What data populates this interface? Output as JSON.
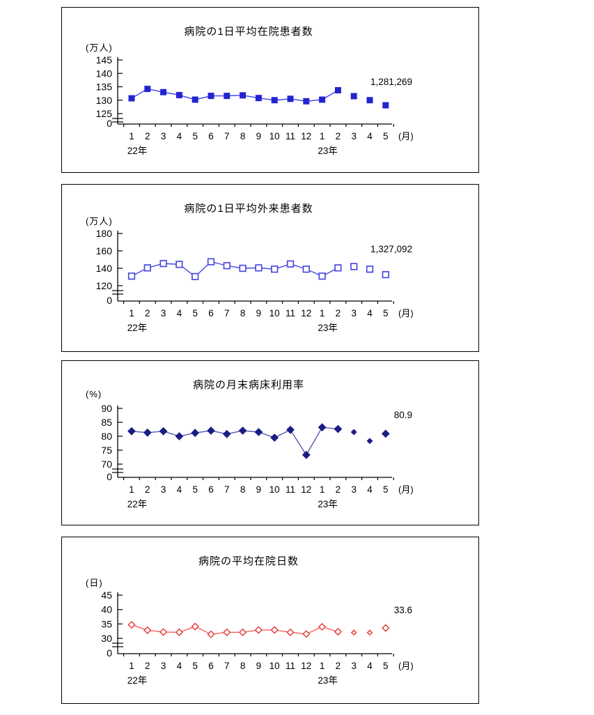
{
  "chart_data": [
    {
      "type": "line",
      "title": "病院の1日平均在院患者数",
      "unit_label": "(万人)",
      "x_axis_label": "(月)",
      "origin_label": "0",
      "ylabel": "万人",
      "yticks": [
        125,
        130,
        135,
        140,
        145
      ],
      "ylim": [
        125,
        145
      ],
      "axis_break_to_zero": true,
      "months": [
        "1",
        "2",
        "3",
        "4",
        "5",
        "6",
        "7",
        "8",
        "9",
        "10",
        "11",
        "12",
        "1",
        "2",
        "3",
        "4",
        "5"
      ],
      "year_labels": [
        {
          "label": "22年",
          "month_index": 0
        },
        {
          "label": "23年",
          "month_index": 12
        }
      ],
      "values": [
        130.7,
        134.2,
        133.0,
        131.9,
        130.2,
        131.6,
        131.6,
        131.8,
        130.8,
        130.0,
        130.5,
        129.6,
        130.2,
        133.7,
        131.5,
        130.0,
        128.1
      ],
      "annotation": "1,281,269",
      "line_connected_through_index": 13,
      "marker": "filled-square",
      "marker_color": "#2424cf",
      "line_color": "#3d3df2"
    },
    {
      "type": "line",
      "title": "病院の1日平均外来患者数",
      "unit_label": "(万人)",
      "x_axis_label": "(月)",
      "origin_label": "0",
      "ylabel": "万人",
      "yticks": [
        120,
        140,
        160,
        180
      ],
      "ylim": [
        120,
        180
      ],
      "axis_break_to_zero": true,
      "months": [
        "1",
        "2",
        "3",
        "4",
        "5",
        "6",
        "7",
        "8",
        "9",
        "10",
        "11",
        "12",
        "1",
        "2",
        "3",
        "4",
        "5"
      ],
      "year_labels": [
        {
          "label": "22年",
          "month_index": 0
        },
        {
          "label": "23年",
          "month_index": 12
        }
      ],
      "values": [
        131.0,
        140.5,
        145.5,
        144.5,
        130.5,
        147.5,
        143.0,
        140.0,
        140.5,
        139.0,
        145.0,
        139.0,
        131.0,
        140.5,
        142.0,
        139.0,
        132.7
      ],
      "annotation": "1,327,092",
      "line_connected_through_index": 13,
      "marker": "open-square",
      "marker_color": "#4a4ae2",
      "line_color": "#4747e0"
    },
    {
      "type": "line",
      "title": "病院の月末病床利用率",
      "unit_label": "(%)",
      "x_axis_label": "(月)",
      "origin_label": "0",
      "ylabel": "%",
      "yticks": [
        70,
        75,
        80,
        85,
        90
      ],
      "ylim": [
        70,
        90
      ],
      "axis_break_to_zero": true,
      "months": [
        "1",
        "2",
        "3",
        "4",
        "5",
        "6",
        "7",
        "8",
        "9",
        "10",
        "11",
        "12",
        "1",
        "2",
        "3",
        "4",
        "5"
      ],
      "year_labels": [
        {
          "label": "22年",
          "month_index": 0
        },
        {
          "label": "23年",
          "month_index": 12
        }
      ],
      "values": [
        81.8,
        81.3,
        81.8,
        80.0,
        81.2,
        82.0,
        80.8,
        82.0,
        81.5,
        79.5,
        82.3,
        73.3,
        83.2,
        82.6,
        81.5,
        78.3,
        80.9
      ],
      "annotation": "80.9",
      "line_connected_through_index": 13,
      "marker": "filled-diamond",
      "marker_color": "#1c1c85",
      "line_color": "#5555b5"
    },
    {
      "type": "line",
      "title": "病院の平均在院日数",
      "unit_label": "(日)",
      "x_axis_label": "(月)",
      "origin_label": "0",
      "ylabel": "日",
      "yticks": [
        30,
        35,
        40,
        45
      ],
      "ylim": [
        30,
        45
      ],
      "axis_break_to_zero": true,
      "months": [
        "1",
        "2",
        "3",
        "4",
        "5",
        "6",
        "7",
        "8",
        "9",
        "10",
        "11",
        "12",
        "1",
        "2",
        "3",
        "4",
        "5"
      ],
      "year_labels": [
        {
          "label": "22年",
          "month_index": 0
        },
        {
          "label": "23年",
          "month_index": 12
        }
      ],
      "values": [
        34.7,
        32.8,
        32.2,
        32.1,
        34.1,
        31.4,
        32.1,
        32.1,
        32.9,
        32.9,
        32.1,
        31.5,
        34.0,
        32.3,
        32.0,
        32.0,
        33.6
      ],
      "annotation": "33.6",
      "line_connected_through_index": 13,
      "marker": "open-diamond",
      "marker_color": "#e43535",
      "line_color": "#f36060"
    }
  ]
}
